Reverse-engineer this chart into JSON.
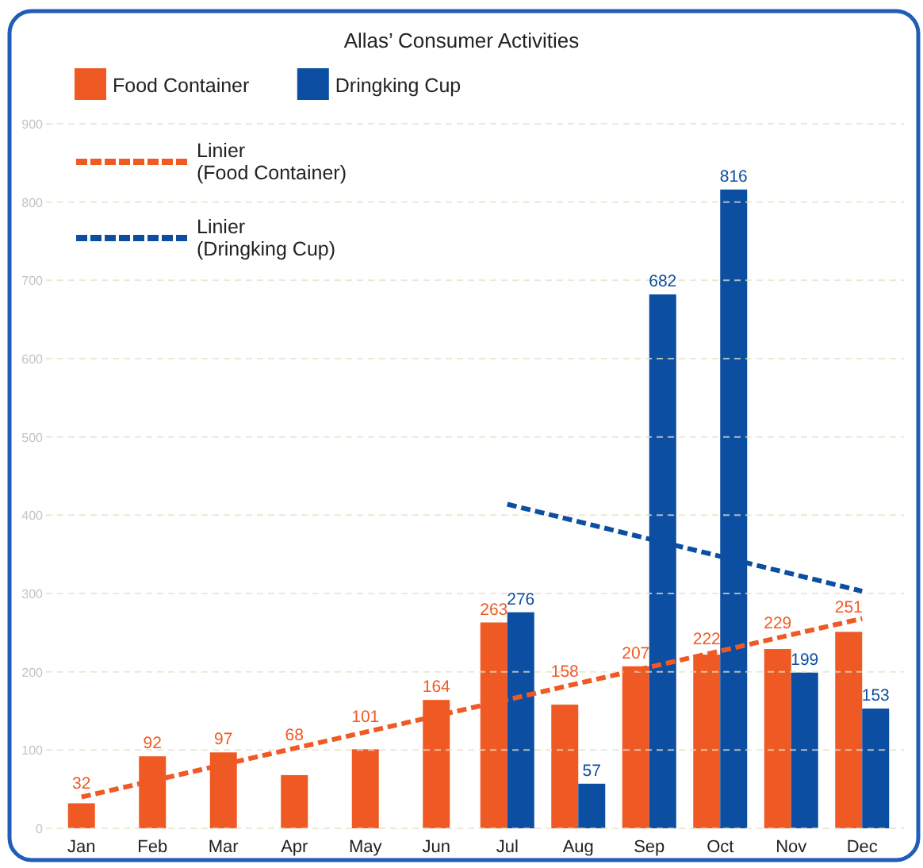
{
  "chart_data": {
    "type": "bar",
    "title": "Allas’ Consumer Activities",
    "categories": [
      "Jan",
      "Feb",
      "Mar",
      "Apr",
      "May",
      "Jun",
      "Jul",
      "Aug",
      "Sep",
      "Oct",
      "Nov",
      "Dec"
    ],
    "series": [
      {
        "name": "Food Container",
        "color": "#ef5a24",
        "values": [
          32,
          92,
          97,
          68,
          101,
          164,
          263,
          158,
          207,
          222,
          229,
          251
        ],
        "value_labels": [
          "32",
          "92",
          "97",
          "68",
          "101",
          "164",
          "263",
          "158",
          "207",
          "222",
          "229",
          "251"
        ]
      },
      {
        "name": "Dringking Cup",
        "color": "#0b4ea2",
        "values": [
          null,
          null,
          null,
          null,
          null,
          null,
          276,
          57,
          682,
          816,
          199,
          153
        ],
        "value_labels": [
          null,
          null,
          null,
          null,
          null,
          null,
          "276",
          "57",
          "682",
          "816",
          "199",
          "153"
        ]
      },
      {
        "name": "Linier\n(Food Container)",
        "type": "line",
        "x": [
          "Jan",
          "Dec"
        ],
        "values": [
          40,
          268
        ],
        "color": "#ef5a24",
        "line_style": "dashed"
      },
      {
        "name": "Linier\n(Dringking Cup)",
        "type": "line",
        "x": [
          "Jul",
          "Dec"
        ],
        "values": [
          414,
          303
        ],
        "color": "#0b4ea2",
        "line_style": "dashed"
      }
    ],
    "ylim": [
      0,
      900
    ],
    "yticks": [
      0,
      100,
      200,
      300,
      400,
      500,
      600,
      700,
      800,
      900
    ],
    "grid": "y",
    "legend": "top left"
  }
}
